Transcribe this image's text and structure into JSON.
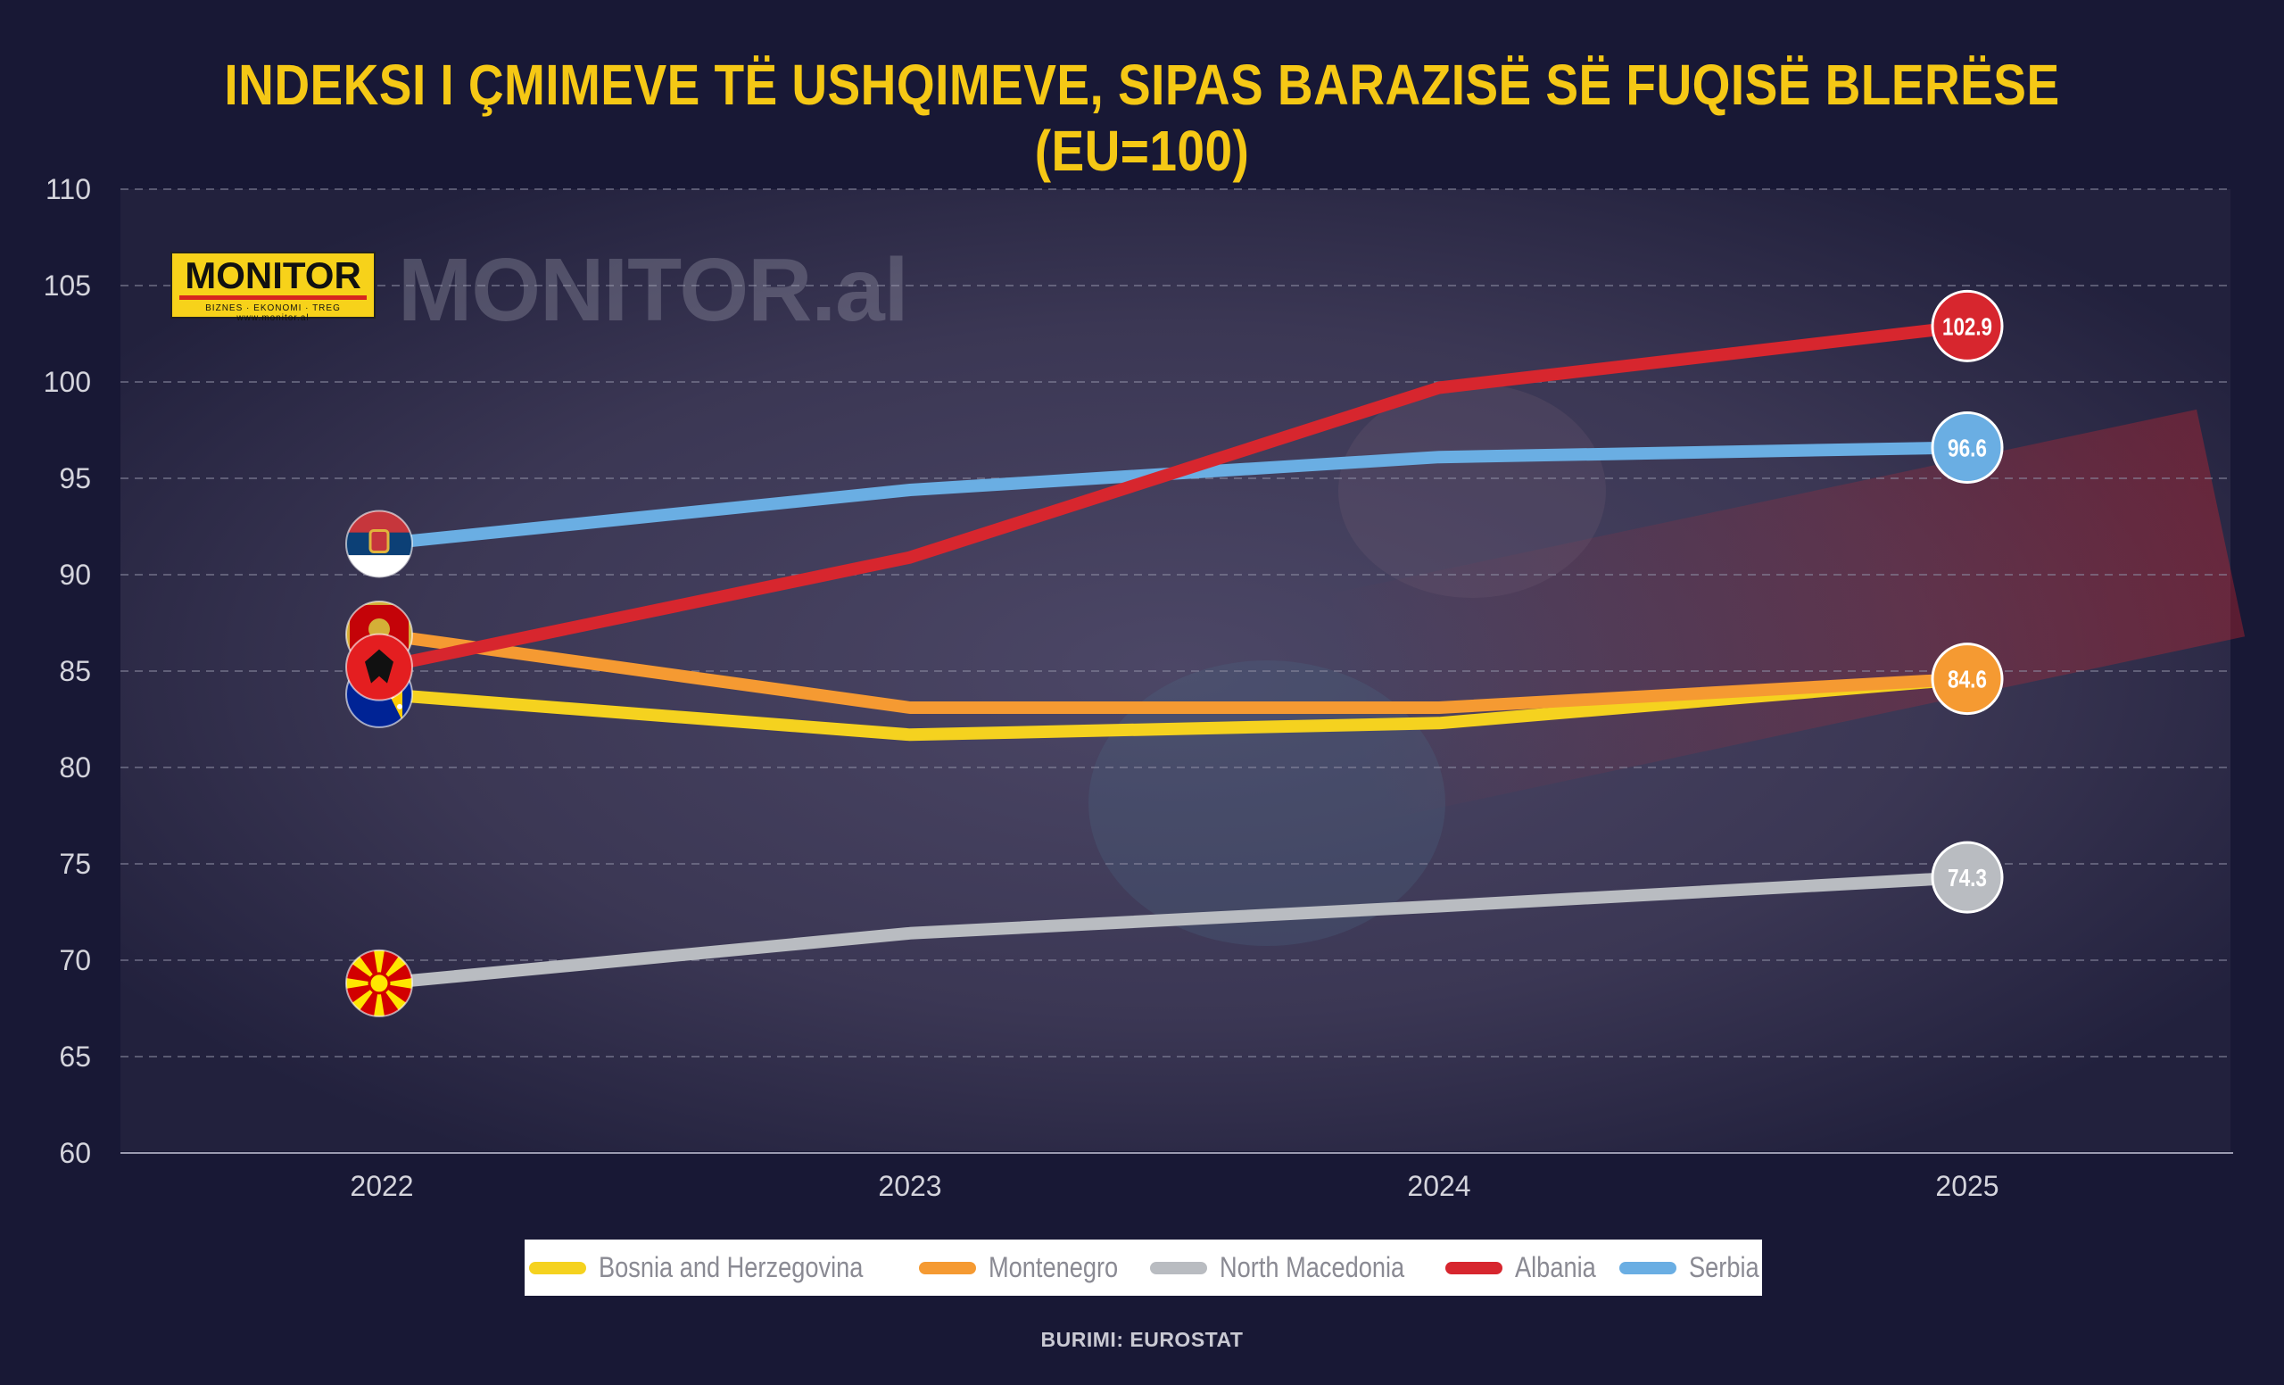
{
  "chart_data": {
    "type": "line",
    "title": "INDEKSI I ÇMIMEVE TË USHQIMEVE, SIPAS BARAZISË SË FUQISË BLERËSE (EU=100)",
    "xlabel": "",
    "ylabel": "",
    "categories": [
      "2022",
      "2023",
      "2024",
      "2025"
    ],
    "ylim": [
      60,
      110
    ],
    "yticks": [
      60,
      65,
      70,
      75,
      80,
      85,
      90,
      95,
      100,
      105,
      110
    ],
    "grid": true,
    "legend_position": "bottom-center",
    "series": [
      {
        "name": "Bosnia and Herzegovina",
        "color": "#f5d21f",
        "icon": "flag-bosnia-icon",
        "values": [
          83.8,
          81.7,
          82.3,
          84.6
        ],
        "end_label": ""
      },
      {
        "name": "Montenegro",
        "color": "#f59a32",
        "icon": "flag-montenegro-icon",
        "values": [
          86.9,
          83.1,
          83.1,
          84.6
        ],
        "end_label": "84.6"
      },
      {
        "name": "North Macedonia",
        "color": "#b9bcc1",
        "icon": "flag-north-macedonia-icon",
        "values": [
          68.8,
          71.4,
          72.8,
          74.3
        ],
        "end_label": "74.3"
      },
      {
        "name": "Albania",
        "color": "#d7262e",
        "icon": "flag-albania-icon",
        "values": [
          85.2,
          90.9,
          99.7,
          102.9
        ],
        "end_label": "102.9"
      },
      {
        "name": "Serbia",
        "color": "#6aaee3",
        "icon": "flag-serbia-icon",
        "values": [
          91.6,
          94.4,
          96.1,
          96.6
        ],
        "end_label": "96.6"
      }
    ]
  },
  "branding": {
    "logo_text": "MONITOR",
    "logo_tagline": "BIZNES · EKONOMI · TREG   www.monitor.al",
    "watermark": "MONITOR.al"
  },
  "source": "BURIMI: EUROSTAT"
}
